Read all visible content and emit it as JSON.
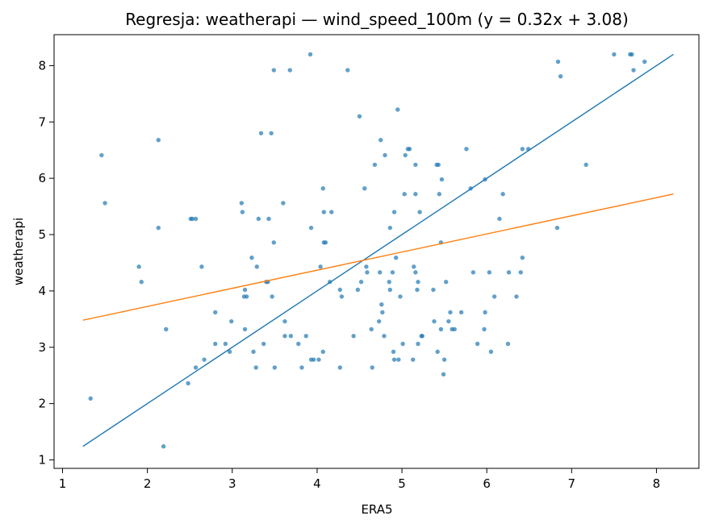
{
  "chart_data": {
    "type": "scatter",
    "title": "Regresja: weatherapi — wind_speed_100m (y = 0.32x + 3.08)",
    "xlabel": "ERA5",
    "ylabel": "weatherapi",
    "xlim": [
      0.9,
      8.5
    ],
    "ylim": [
      0.85,
      8.55
    ],
    "xticks": [
      1,
      2,
      3,
      4,
      5,
      6,
      7,
      8
    ],
    "yticks": [
      1,
      2,
      3,
      4,
      5,
      6,
      7,
      8
    ],
    "grid": false,
    "legend": "none",
    "colors": {
      "points": "#1f77b4",
      "identity": "#1f77b4",
      "fit": "#ff7f0e"
    },
    "series": [
      {
        "type": "scatter",
        "points": [
          [
            1.33,
            2.09
          ],
          [
            1.46,
            6.41
          ],
          [
            1.5,
            5.56
          ],
          [
            1.9,
            4.43
          ],
          [
            1.93,
            4.16
          ],
          [
            2.13,
            6.68
          ],
          [
            2.13,
            5.12
          ],
          [
            2.19,
            1.24
          ],
          [
            2.22,
            3.32
          ],
          [
            2.48,
            2.36
          ],
          [
            2.51,
            5.28
          ],
          [
            2.53,
            5.28
          ],
          [
            2.57,
            5.28
          ],
          [
            2.57,
            2.64
          ],
          [
            2.64,
            4.43
          ],
          [
            2.67,
            2.78
          ],
          [
            2.8,
            3.62
          ],
          [
            2.8,
            3.06
          ],
          [
            2.92,
            3.06
          ],
          [
            2.97,
            2.92
          ],
          [
            2.99,
            3.46
          ],
          [
            3.11,
            5.56
          ],
          [
            3.12,
            5.4
          ],
          [
            3.14,
            3.9
          ],
          [
            3.15,
            4.02
          ],
          [
            3.15,
            3.32
          ],
          [
            3.17,
            3.9
          ],
          [
            3.23,
            4.59
          ],
          [
            3.25,
            2.92
          ],
          [
            3.28,
            2.64
          ],
          [
            3.29,
            4.43
          ],
          [
            3.31,
            5.28
          ],
          [
            3.34,
            6.8
          ],
          [
            3.37,
            3.06
          ],
          [
            3.4,
            4.16
          ],
          [
            3.42,
            4.16
          ],
          [
            3.43,
            5.28
          ],
          [
            3.46,
            6.8
          ],
          [
            3.47,
            3.9
          ],
          [
            3.49,
            7.92
          ],
          [
            3.49,
            4.86
          ],
          [
            3.5,
            2.64
          ],
          [
            3.6,
            5.56
          ],
          [
            3.62,
            3.46
          ],
          [
            3.62,
            3.2
          ],
          [
            3.68,
            7.92
          ],
          [
            3.69,
            3.2
          ],
          [
            3.78,
            3.06
          ],
          [
            3.82,
            2.64
          ],
          [
            3.87,
            3.2
          ],
          [
            3.92,
            8.2
          ],
          [
            3.93,
            2.78
          ],
          [
            3.93,
            5.12
          ],
          [
            3.96,
            2.78
          ],
          [
            4.02,
            2.78
          ],
          [
            4.04,
            4.43
          ],
          [
            4.07,
            5.82
          ],
          [
            4.07,
            2.92
          ],
          [
            4.08,
            4.86
          ],
          [
            4.08,
            5.4
          ],
          [
            4.1,
            4.86
          ],
          [
            4.15,
            4.16
          ],
          [
            4.17,
            5.4
          ],
          [
            4.27,
            2.64
          ],
          [
            4.27,
            4.02
          ],
          [
            4.29,
            3.9
          ],
          [
            4.36,
            7.92
          ],
          [
            4.43,
            3.2
          ],
          [
            4.48,
            4.02
          ],
          [
            4.5,
            7.1
          ],
          [
            4.52,
            4.16
          ],
          [
            4.56,
            5.82
          ],
          [
            4.58,
            4.43
          ],
          [
            4.59,
            4.33
          ],
          [
            4.64,
            3.32
          ],
          [
            4.65,
            2.64
          ],
          [
            4.68,
            6.24
          ],
          [
            4.73,
            3.46
          ],
          [
            4.74,
            4.33
          ],
          [
            4.75,
            6.68
          ],
          [
            4.76,
            3.76
          ],
          [
            4.77,
            3.62
          ],
          [
            4.79,
            3.2
          ],
          [
            4.8,
            6.41
          ],
          [
            4.85,
            4.16
          ],
          [
            4.86,
            4.02
          ],
          [
            4.86,
            5.12
          ],
          [
            4.89,
            4.33
          ],
          [
            4.9,
            2.92
          ],
          [
            4.91,
            5.4
          ],
          [
            4.91,
            2.78
          ],
          [
            4.93,
            4.59
          ],
          [
            4.95,
            7.22
          ],
          [
            4.96,
            2.78
          ],
          [
            4.98,
            3.9
          ],
          [
            5.01,
            3.06
          ],
          [
            5.03,
            5.72
          ],
          [
            5.04,
            6.41
          ],
          [
            5.07,
            6.52
          ],
          [
            5.09,
            6.52
          ],
          [
            5.13,
            2.78
          ],
          [
            5.14,
            4.43
          ],
          [
            5.16,
            6.24
          ],
          [
            5.16,
            4.33
          ],
          [
            5.16,
            5.72
          ],
          [
            5.18,
            4.02
          ],
          [
            5.19,
            4.16
          ],
          [
            5.19,
            3.06
          ],
          [
            5.21,
            5.4
          ],
          [
            5.23,
            3.2
          ],
          [
            5.24,
            3.2
          ],
          [
            5.37,
            4.02
          ],
          [
            5.38,
            3.46
          ],
          [
            5.41,
            6.24
          ],
          [
            5.42,
            2.92
          ],
          [
            5.43,
            6.24
          ],
          [
            5.44,
            5.72
          ],
          [
            5.46,
            3.32
          ],
          [
            5.46,
            4.86
          ],
          [
            5.47,
            5.98
          ],
          [
            5.49,
            2.52
          ],
          [
            5.5,
            2.78
          ],
          [
            5.52,
            4.16
          ],
          [
            5.55,
            3.46
          ],
          [
            5.57,
            3.62
          ],
          [
            5.59,
            3.32
          ],
          [
            5.62,
            3.32
          ],
          [
            5.7,
            3.62
          ],
          [
            5.76,
            6.52
          ],
          [
            5.81,
            5.82
          ],
          [
            5.84,
            4.33
          ],
          [
            5.89,
            3.06
          ],
          [
            5.97,
            3.32
          ],
          [
            5.98,
            3.62
          ],
          [
            5.98,
            5.98
          ],
          [
            6.03,
            4.33
          ],
          [
            6.05,
            2.92
          ],
          [
            6.09,
            3.9
          ],
          [
            6.15,
            5.28
          ],
          [
            6.19,
            5.72
          ],
          [
            6.25,
            3.06
          ],
          [
            6.26,
            4.33
          ],
          [
            6.35,
            3.9
          ],
          [
            6.4,
            4.33
          ],
          [
            6.42,
            4.59
          ],
          [
            6.42,
            6.52
          ],
          [
            6.49,
            6.52
          ],
          [
            6.83,
            5.12
          ],
          [
            6.84,
            8.07
          ],
          [
            6.87,
            7.81
          ],
          [
            7.17,
            6.24
          ],
          [
            7.5,
            8.2
          ],
          [
            7.69,
            8.2
          ],
          [
            7.71,
            8.2
          ],
          [
            7.73,
            7.92
          ],
          [
            7.86,
            8.07
          ]
        ]
      },
      {
        "type": "line",
        "x": [
          1.24,
          8.2
        ],
        "y": [
          1.24,
          8.2
        ]
      },
      {
        "type": "line",
        "x": [
          1.24,
          8.2
        ],
        "y": [
          3.48,
          5.72
        ]
      }
    ]
  }
}
